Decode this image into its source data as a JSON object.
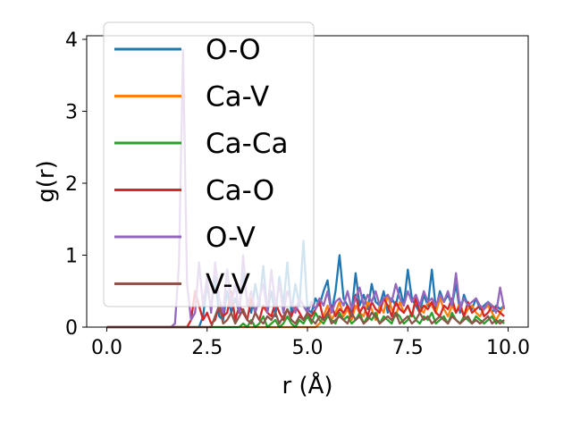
{
  "chart_data": {
    "type": "line",
    "xlabel": "r (Å)",
    "ylabel": "g(r)",
    "xlim": [
      -0.5,
      10.5
    ],
    "ylim": [
      0,
      4.05
    ],
    "xticks": [
      0.0,
      2.5,
      5.0,
      7.5,
      10.0
    ],
    "xtick_labels": [
      "0.0",
      "2.5",
      "5.0",
      "7.5",
      "10.0"
    ],
    "yticks": [
      0,
      1,
      2,
      3,
      4
    ],
    "ytick_labels": [
      "0",
      "1",
      "2",
      "3",
      "4"
    ],
    "grid": false,
    "legend": "upper-left, overlapping plot",
    "x": [
      0.0,
      0.1,
      0.2,
      0.3,
      0.4,
      0.5,
      0.6,
      0.7,
      0.8,
      0.9,
      1.0,
      1.1,
      1.2,
      1.3,
      1.4,
      1.5,
      1.6,
      1.7,
      1.8,
      1.9,
      2.0,
      2.1,
      2.2,
      2.3,
      2.4,
      2.5,
      2.6,
      2.7,
      2.8,
      2.9,
      3.0,
      3.1,
      3.2,
      3.3,
      3.4,
      3.5,
      3.6,
      3.7,
      3.8,
      3.9,
      4.0,
      4.1,
      4.2,
      4.3,
      4.4,
      4.5,
      4.6,
      4.7,
      4.8,
      4.9,
      5.0,
      5.1,
      5.2,
      5.3,
      5.4,
      5.5,
      5.6,
      5.7,
      5.8,
      5.9,
      6.0,
      6.1,
      6.2,
      6.3,
      6.4,
      6.5,
      6.6,
      6.7,
      6.8,
      6.9,
      7.0,
      7.1,
      7.2,
      7.3,
      7.4,
      7.5,
      7.6,
      7.7,
      7.8,
      7.9,
      8.0,
      8.1,
      8.2,
      8.3,
      8.4,
      8.5,
      8.6,
      8.7,
      8.8,
      8.9,
      9.0,
      9.1,
      9.2,
      9.3,
      9.4,
      9.5,
      9.6,
      9.7,
      9.8,
      9.9
    ],
    "series": [
      {
        "name": "O-O",
        "color": "#1f77b4",
        "values": [
          0,
          0,
          0,
          0,
          0,
          0,
          0,
          0,
          0,
          0,
          0,
          0,
          0,
          0,
          0,
          0,
          0,
          0,
          0,
          0,
          0,
          0,
          0,
          0,
          0.15,
          0.6,
          0.25,
          0.7,
          0.15,
          0.1,
          0.5,
          0.2,
          0.4,
          0.2,
          0.75,
          0.35,
          0.2,
          0.6,
          0.3,
          0.85,
          0.2,
          0.5,
          0.15,
          0.7,
          0.3,
          0.9,
          0.2,
          0.6,
          0.3,
          1.2,
          0.25,
          0.2,
          0.4,
          0.3,
          0.5,
          0.65,
          0.2,
          0.5,
          1.0,
          0.4,
          0.3,
          0.2,
          0.75,
          0.3,
          0.45,
          0.25,
          0.6,
          0.35,
          0.3,
          0.5,
          0.2,
          0.4,
          0.3,
          0.55,
          0.3,
          0.8,
          0.4,
          0.3,
          0.2,
          0.45,
          0.3,
          0.8,
          0.25,
          0.5,
          0.35,
          0.45,
          0.3,
          0.6,
          0.2,
          0.45,
          0.3,
          0.25,
          0.4,
          0.25,
          0.3,
          0.35,
          0.2,
          0.3,
          0.25,
          0.3
        ]
      },
      {
        "name": "Ca-V",
        "color": "#ff7f0e",
        "values": [
          0,
          0,
          0,
          0,
          0,
          0,
          0,
          0,
          0,
          0,
          0,
          0,
          0,
          0,
          0,
          0,
          0,
          0,
          0,
          0,
          0,
          0,
          0,
          0,
          0,
          0,
          0,
          0,
          0,
          0,
          0,
          0,
          0,
          0,
          0,
          0,
          0,
          0,
          0,
          0,
          0,
          0,
          0,
          0,
          0,
          0,
          0,
          0,
          0,
          0,
          0,
          0,
          0,
          0.05,
          0.15,
          0.3,
          0.1,
          0.2,
          0.35,
          0.15,
          0.25,
          0.1,
          0.3,
          0.2,
          0.15,
          0.35,
          0.25,
          0.1,
          0.3,
          0.2,
          0.45,
          0.25,
          0.15,
          0.35,
          0.2,
          0.3,
          0.15,
          0.4,
          0.25,
          0.2,
          0.35,
          0.3,
          0.2,
          0.4,
          0.25,
          0.15,
          0.3,
          0.2,
          0.35,
          0.15,
          0.25,
          0.3,
          0.2,
          0.15,
          0.25,
          0.3,
          0.2,
          0.1,
          0.2,
          0.3
        ]
      },
      {
        "name": "Ca-Ca",
        "color": "#2ca02c",
        "values": [
          0,
          0,
          0,
          0,
          0,
          0,
          0,
          0,
          0,
          0,
          0,
          0,
          0,
          0,
          0,
          0,
          0,
          0,
          0,
          0,
          0,
          0,
          0,
          0,
          0,
          0,
          0,
          0,
          0,
          0,
          0,
          0,
          0,
          0,
          0.05,
          0,
          0.1,
          0,
          0.05,
          0.15,
          0,
          0.05,
          0.1,
          0,
          0.05,
          0.15,
          0.05,
          0,
          0.1,
          0.05,
          0.15,
          0.05,
          0.2,
          0.1,
          0.05,
          0.15,
          0.1,
          0.05,
          0.2,
          0.1,
          0.15,
          0.05,
          0.1,
          0.2,
          0.05,
          0.15,
          0.1,
          0.2,
          0.05,
          0.15,
          0.1,
          0.05,
          0.2,
          0.15,
          0.05,
          0.1,
          0.2,
          0.1,
          0.05,
          0.15,
          0.1,
          0.2,
          0.05,
          0.1,
          0.15,
          0.05,
          0.2,
          0.1,
          0.05,
          0.15,
          0.1,
          0.05,
          0.15,
          0.1,
          0.05,
          0.1,
          0.15,
          0.05,
          0.1,
          0.05
        ]
      },
      {
        "name": "Ca-O",
        "color": "#d62728",
        "values": [
          0,
          0,
          0,
          0,
          0,
          0,
          0,
          0,
          0,
          0,
          0,
          0,
          0,
          0,
          0,
          0,
          0,
          0,
          0,
          0,
          0,
          0.1,
          0.5,
          0.3,
          0.1,
          0.2,
          0.05,
          0.1,
          0.3,
          0.15,
          0.2,
          0.5,
          0.1,
          0.3,
          0.2,
          0.1,
          0.4,
          0.2,
          0.1,
          0.3,
          0.2,
          0.15,
          0.35,
          0.2,
          0.1,
          0.25,
          0.15,
          0.3,
          0.2,
          0.1,
          0.2,
          0.15,
          0.25,
          0.35,
          0.1,
          0.2,
          0.3,
          0.15,
          0.25,
          0.2,
          0.3,
          0.15,
          0.45,
          0.2,
          0.3,
          0.15,
          0.35,
          0.25,
          0.2,
          0.4,
          0.3,
          0.15,
          0.35,
          0.25,
          0.2,
          0.3,
          0.15,
          0.4,
          0.2,
          0.3,
          0.25,
          0.35,
          0.2,
          0.15,
          0.3,
          0.25,
          0.4,
          0.2,
          0.3,
          0.15,
          0.35,
          0.2,
          0.25,
          0.3,
          0.15,
          0.2,
          0.3,
          0.25,
          0.2,
          0.15
        ]
      },
      {
        "name": "O-V",
        "color": "#9467bd",
        "values": [
          0,
          0,
          0,
          0,
          0,
          0,
          0,
          0,
          0,
          0,
          0,
          0,
          0,
          0,
          0,
          0,
          0,
          0.05,
          0.9,
          3.85,
          0.6,
          0.1,
          0.2,
          0.9,
          0.3,
          0.7,
          0.2,
          0.9,
          0.4,
          0.2,
          0.8,
          0.3,
          0.6,
          0.2,
          1.0,
          0.3,
          0.5,
          0.2,
          0.4,
          0.6,
          0.2,
          0.8,
          0.3,
          0.6,
          0.2,
          0.5,
          0.35,
          0.2,
          0.4,
          0.3,
          0.2,
          0.35,
          0.25,
          0.4,
          0.3,
          0.5,
          0.2,
          0.35,
          0.4,
          0.3,
          0.5,
          0.25,
          0.4,
          0.55,
          0.3,
          0.45,
          0.35,
          0.5,
          0.3,
          0.4,
          0.45,
          0.35,
          0.6,
          0.4,
          0.3,
          0.5,
          0.35,
          0.45,
          0.3,
          0.5,
          0.35,
          0.4,
          0.3,
          0.45,
          0.35,
          0.5,
          0.3,
          0.75,
          0.25,
          0.4,
          0.3,
          0.35,
          0.4,
          0.3,
          0.25,
          0.35,
          0.3,
          0.2,
          0.55,
          0.25
        ]
      },
      {
        "name": "V-V",
        "color": "#8c564b",
        "values": [
          0,
          0,
          0,
          0,
          0,
          0,
          0,
          0,
          0,
          0,
          0,
          0,
          0,
          0,
          0,
          0,
          0,
          0,
          0,
          0,
          0,
          0,
          0,
          0,
          0,
          0,
          0,
          0.15,
          0.3,
          0.05,
          0.1,
          0.2,
          0.05,
          0.15,
          0.25,
          0.1,
          0.05,
          0.2,
          0.1,
          0.05,
          0.15,
          0.1,
          0.2,
          0.05,
          0.15,
          0.25,
          0.1,
          0.05,
          0.15,
          0.1,
          0.2,
          0.1,
          0.05,
          0.15,
          0.1,
          0.2,
          0.05,
          0.1,
          0.15,
          0.1,
          0.05,
          0.2,
          0.1,
          0.15,
          0.05,
          0.1,
          0.2,
          0.15,
          0.05,
          0.1,
          0.15,
          0.1,
          0.2,
          0.05,
          0.1,
          0.15,
          0.05,
          0.1,
          0.2,
          0.1,
          0.15,
          0.05,
          0.1,
          0.15,
          0.1,
          0.05,
          0.15,
          0.1,
          0.05,
          0.1,
          0.15,
          0.05,
          0.1,
          0.05,
          0.1,
          0.15,
          0.05,
          0.1,
          0.05,
          0.1
        ]
      }
    ]
  }
}
